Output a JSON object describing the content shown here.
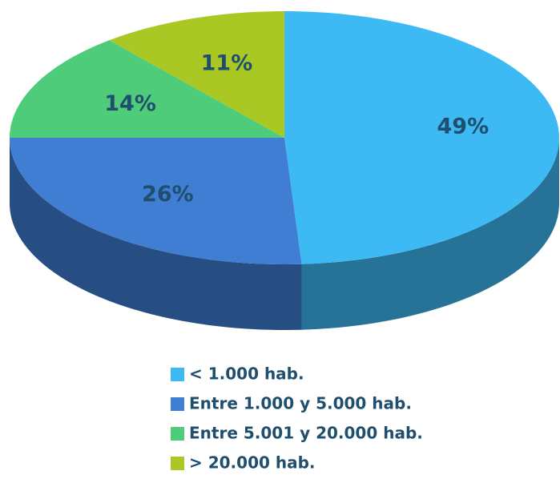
{
  "chart_data": {
    "type": "pie",
    "categories": [
      "< 1.000 hab.",
      "Entre 1.000 y 5.000 hab.",
      "Entre 5.001 y 20.000 hab.",
      "> 20.000 hab."
    ],
    "values": [
      49,
      26,
      14,
      11
    ],
    "value_labels": [
      "49%",
      "26%",
      "14%",
      "11%"
    ],
    "colors": [
      "#3db9f4",
      "#3f7ed2",
      "#4fcc79",
      "#a9c823"
    ]
  }
}
